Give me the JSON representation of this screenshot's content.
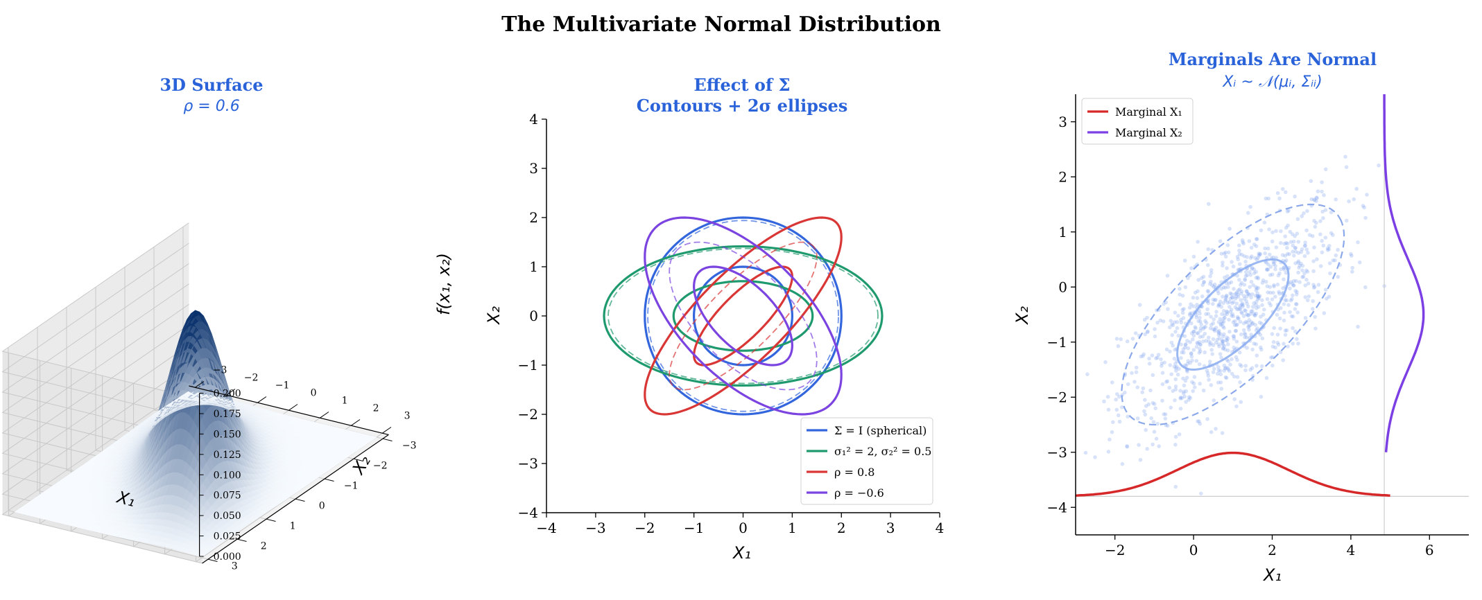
{
  "figure": {
    "title": "The Multivariate Normal Distribution"
  },
  "chart_data": [
    {
      "type": "surface",
      "title": "3D Surface",
      "subtitle": "ρ = 0.6",
      "xlabel": "X₁",
      "ylabel": "X₂",
      "zlabel": "f(x₁, x₂)",
      "rho": 0.6,
      "x_ticks": [
        "−3",
        "−2",
        "−1",
        "0",
        "1",
        "2",
        "3"
      ],
      "y_ticks": [
        "−3",
        "−2",
        "−1",
        "0",
        "1",
        "2",
        "3"
      ],
      "z_ticks": [
        "0.000",
        "0.025",
        "0.050",
        "0.075",
        "0.100",
        "0.125",
        "0.150",
        "0.175",
        "0.200"
      ],
      "xlim": [
        -3,
        3
      ],
      "ylim": [
        -3,
        3
      ],
      "zlim": [
        0,
        0.2
      ],
      "colormap": "Blues",
      "peak": 0.199
    },
    {
      "type": "line",
      "title": "Effect of Σ",
      "subtitle": "Contours + 2σ ellipses",
      "xlabel": "X₁",
      "ylabel": "X₂",
      "xlim": [
        -4,
        4
      ],
      "ylim": [
        -4,
        4
      ],
      "x_ticks": [
        "−4",
        "−3",
        "−2",
        "−1",
        "0",
        "1",
        "2",
        "3",
        "4"
      ],
      "y_ticks": [
        "−4",
        "−3",
        "−2",
        "−1",
        "0",
        "1",
        "2",
        "3",
        "4"
      ],
      "legend_position": "lower-right",
      "series": [
        {
          "name": "Σ = I (spherical)",
          "color": "#3366dd",
          "s11": 1,
          "s22": 1,
          "rho": 0
        },
        {
          "name": "σ₁² = 2, σ₂² = 0.5",
          "color": "#1f9a6e",
          "s11": 2,
          "s22": 0.5,
          "rho": 0
        },
        {
          "name": "ρ = 0.8",
          "color": "#d93636",
          "s11": 1,
          "s22": 1,
          "rho": 0.8
        },
        {
          "name": "ρ = −0.6",
          "color": "#7b44e0",
          "s11": 1,
          "s22": 1,
          "rho": -0.6
        }
      ]
    },
    {
      "type": "scatter",
      "title": "Marginals Are Normal",
      "subtitle": "Xᵢ ~ 𝒩(μᵢ, Σᵢᵢ)",
      "xlabel": "X₁",
      "ylabel": "X₂",
      "xlim": [
        -3,
        7
      ],
      "ylim": [
        -4.5,
        3.5
      ],
      "x_ticks": [
        "−2",
        "0",
        "2",
        "4",
        "6"
      ],
      "y_ticks": [
        "−4",
        "−3",
        "−2",
        "−1",
        "0",
        "1",
        "2",
        "3"
      ],
      "legend_position": "upper-left",
      "mean": [
        1,
        -0.5
      ],
      "cov": [
        [
          2,
          1
        ],
        [
          1,
          1
        ]
      ],
      "points": 1000,
      "series": [
        {
          "name": "Marginal X₁",
          "color": "#d62828"
        },
        {
          "name": "Marginal X₂",
          "color": "#7b3fe4"
        }
      ]
    }
  ]
}
